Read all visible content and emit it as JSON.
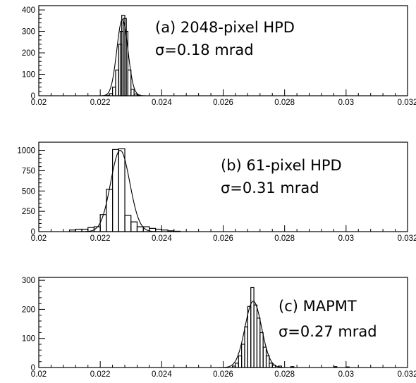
{
  "chart_data": [
    {
      "type": "histogram",
      "panel": "a",
      "annotation_line1": "(a) 2048-pixel HPD",
      "annotation_line2": "σ=0.18 mrad",
      "xlim": [
        0.02,
        0.032
      ],
      "ylim": [
        0,
        420
      ],
      "x_ticks": [
        "0.02",
        "0.022",
        "0.024",
        "0.026",
        "0.028",
        "0.03",
        "0.032"
      ],
      "y_ticks": [
        0,
        100,
        200,
        300,
        400
      ],
      "fit": {
        "mean": 0.02272,
        "sigma": 0.00018,
        "amplitude": 355
      },
      "bin_width": 0.0001,
      "bins": [
        {
          "x": 0.0222,
          "y": 2
        },
        {
          "x": 0.0223,
          "y": 10
        },
        {
          "x": 0.0224,
          "y": 40
        },
        {
          "x": 0.0225,
          "y": 120
        },
        {
          "x": 0.0226,
          "y": 240
        },
        {
          "x": 0.02265,
          "y": 300
        },
        {
          "x": 0.0227,
          "y": 375
        },
        {
          "x": 0.02275,
          "y": 360
        },
        {
          "x": 0.0228,
          "y": 300
        },
        {
          "x": 0.0229,
          "y": 120
        },
        {
          "x": 0.023,
          "y": 30
        },
        {
          "x": 0.0231,
          "y": 8
        },
        {
          "x": 0.0232,
          "y": 3
        }
      ]
    },
    {
      "type": "histogram",
      "panel": "b",
      "annotation_line1": "(b) 61-pixel HPD",
      "annotation_line2": "σ=0.31 mrad",
      "xlim": [
        0.02,
        0.032
      ],
      "ylim": [
        0,
        1100
      ],
      "x_ticks": [
        "0.02",
        "0.022",
        "0.024",
        "0.026",
        "0.028",
        "0.03",
        "0.032"
      ],
      "y_ticks": [
        0,
        250,
        500,
        750,
        1000
      ],
      "fit": {
        "mean": 0.02265,
        "sigma": 0.00031,
        "amplitude": 1000
      },
      "bin_width": 0.0002,
      "bins": [
        {
          "x": 0.021,
          "y": 20
        },
        {
          "x": 0.0212,
          "y": 30
        },
        {
          "x": 0.0214,
          "y": 30
        },
        {
          "x": 0.0216,
          "y": 50
        },
        {
          "x": 0.0218,
          "y": 60
        },
        {
          "x": 0.022,
          "y": 210
        },
        {
          "x": 0.0222,
          "y": 520
        },
        {
          "x": 0.0224,
          "y": 1010
        },
        {
          "x": 0.0226,
          "y": 1020
        },
        {
          "x": 0.0228,
          "y": 200
        },
        {
          "x": 0.023,
          "y": 120
        },
        {
          "x": 0.0232,
          "y": 60
        },
        {
          "x": 0.0234,
          "y": 60
        },
        {
          "x": 0.0236,
          "y": 40
        },
        {
          "x": 0.0238,
          "y": 30
        },
        {
          "x": 0.024,
          "y": 20
        },
        {
          "x": 0.0242,
          "y": 10
        },
        {
          "x": 0.0244,
          "y": 5
        }
      ]
    },
    {
      "type": "histogram",
      "panel": "c",
      "annotation_line1": "(c) MAPMT",
      "annotation_line2": "σ=0.27 mrad",
      "xlim": [
        0.02,
        0.032
      ],
      "ylim": [
        0,
        310
      ],
      "x_ticks": [
        "0.02",
        "0.022",
        "0.024",
        "0.026",
        "0.028",
        "0.03",
        "0.032"
      ],
      "y_ticks": [
        0,
        100,
        200,
        300
      ],
      "fit": {
        "mean": 0.02698,
        "sigma": 0.00027,
        "amplitude": 228
      },
      "bin_width": 0.0001,
      "bins": [
        {
          "x": 0.0263,
          "y": 5
        },
        {
          "x": 0.0264,
          "y": 15
        },
        {
          "x": 0.0265,
          "y": 40
        },
        {
          "x": 0.0266,
          "y": 80
        },
        {
          "x": 0.0267,
          "y": 140
        },
        {
          "x": 0.0268,
          "y": 210
        },
        {
          "x": 0.0269,
          "y": 275
        },
        {
          "x": 0.027,
          "y": 215
        },
        {
          "x": 0.0271,
          "y": 170
        },
        {
          "x": 0.0272,
          "y": 120
        },
        {
          "x": 0.0273,
          "y": 70
        },
        {
          "x": 0.0274,
          "y": 40
        },
        {
          "x": 0.0275,
          "y": 15
        },
        {
          "x": 0.0276,
          "y": 8
        },
        {
          "x": 0.0278,
          "y": 5
        },
        {
          "x": 0.0282,
          "y": 3
        },
        {
          "x": 0.0296,
          "y": 3
        },
        {
          "x": 0.03,
          "y": 2
        }
      ]
    }
  ]
}
